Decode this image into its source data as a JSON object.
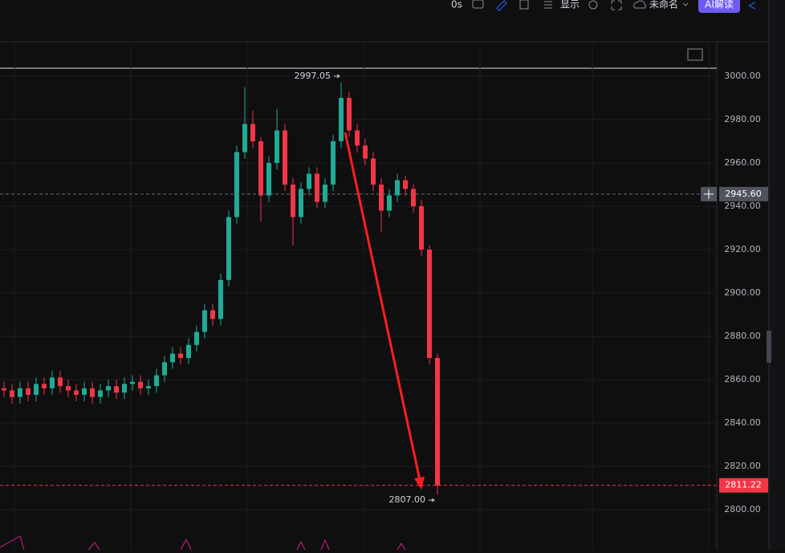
{
  "toolbar": {
    "interval": "0s",
    "display": "显示",
    "layout_name": "未命名",
    "ai_button": "AI解读"
  },
  "chart_data": {
    "type": "candlestick",
    "open": [
      2856,
      2855,
      2852,
      2856,
      2853,
      2858,
      2856,
      2861,
      2857,
      2855,
      2853,
      2856,
      2852,
      2855,
      2857,
      2854,
      2858,
      2859,
      2856,
      2857,
      2862,
      2868,
      2872,
      2870,
      2876,
      2882,
      2892,
      2888,
      2906,
      2935,
      2965,
      2978,
      2970,
      2945,
      2960,
      2975,
      2950,
      2935,
      2948,
      2955,
      2942,
      2950,
      2970,
      2990,
      2975,
      2968,
      2962,
      2950,
      2938,
      2945,
      2952,
      2948,
      2940,
      2920,
      2870
    ],
    "high": [
      2859,
      2858,
      2859,
      2859,
      2861,
      2861,
      2864,
      2864,
      2860,
      2858,
      2859,
      2859,
      2858,
      2860,
      2860,
      2861,
      2862,
      2862,
      2860,
      2865,
      2871,
      2875,
      2875,
      2879,
      2885,
      2895,
      2895,
      2909,
      2938,
      2968,
      2995,
      2984,
      2972,
      2963,
      2985,
      2978,
      2953,
      2951,
      2958,
      2958,
      2953,
      2973,
      2997.05,
      2993,
      2978,
      2971,
      2965,
      2953,
      2948,
      2955,
      2954,
      2950,
      2943,
      2922,
      2872
    ],
    "low": [
      2852,
      2849,
      2849,
      2850,
      2850,
      2853,
      2853,
      2854,
      2852,
      2850,
      2850,
      2849,
      2849,
      2852,
      2851,
      2851,
      2855,
      2853,
      2853,
      2854,
      2859,
      2865,
      2867,
      2867,
      2873,
      2879,
      2885,
      2885,
      2903,
      2932,
      2962,
      2967,
      2933,
      2942,
      2957,
      2947,
      2922,
      2932,
      2945,
      2939,
      2939,
      2947,
      2967,
      2972,
      2965,
      2959,
      2947,
      2928,
      2935,
      2942,
      2945,
      2937,
      2917,
      2867,
      2807.0
    ],
    "close": [
      2855,
      2852,
      2856,
      2853,
      2858,
      2856,
      2861,
      2857,
      2855,
      2853,
      2856,
      2852,
      2855,
      2857,
      2854,
      2858,
      2859,
      2856,
      2857,
      2862,
      2868,
      2872,
      2870,
      2876,
      2882,
      2892,
      2888,
      2906,
      2935,
      2965,
      2978,
      2970,
      2945,
      2960,
      2975,
      2950,
      2935,
      2948,
      2955,
      2942,
      2950,
      2970,
      2990,
      2975,
      2968,
      2962,
      2950,
      2938,
      2945,
      2952,
      2948,
      2940,
      2920,
      2870,
      2811.22
    ],
    "up_color": "#22ab94",
    "down_color": "#f23645",
    "ylim": [
      2792.6,
      3014.8
    ],
    "yticks": [
      {
        "value": 2800,
        "label": "2800.00"
      },
      {
        "value": 2820,
        "label": "2820.00"
      },
      {
        "value": 2840,
        "label": "2840.00"
      },
      {
        "value": 2860,
        "label": "2860.00"
      },
      {
        "value": 2880,
        "label": "2880.00"
      },
      {
        "value": 2900,
        "label": "2900.00"
      },
      {
        "value": 2920,
        "label": "2920.00"
      },
      {
        "value": 2940,
        "label": "2940.00"
      },
      {
        "value": 2960,
        "label": "2960.00"
      },
      {
        "value": 2980,
        "label": "2980.00"
      },
      {
        "value": 3000,
        "label": "3000.00"
      }
    ],
    "annotations": [
      {
        "value": 2997.05,
        "label": "2997.05"
      },
      {
        "value": 2807.0,
        "label": "2807.00"
      }
    ],
    "crosshair": {
      "value": 2945.6,
      "label": "2945.60"
    },
    "last_price": {
      "value": 2811.22,
      "label": "2811.22"
    }
  }
}
